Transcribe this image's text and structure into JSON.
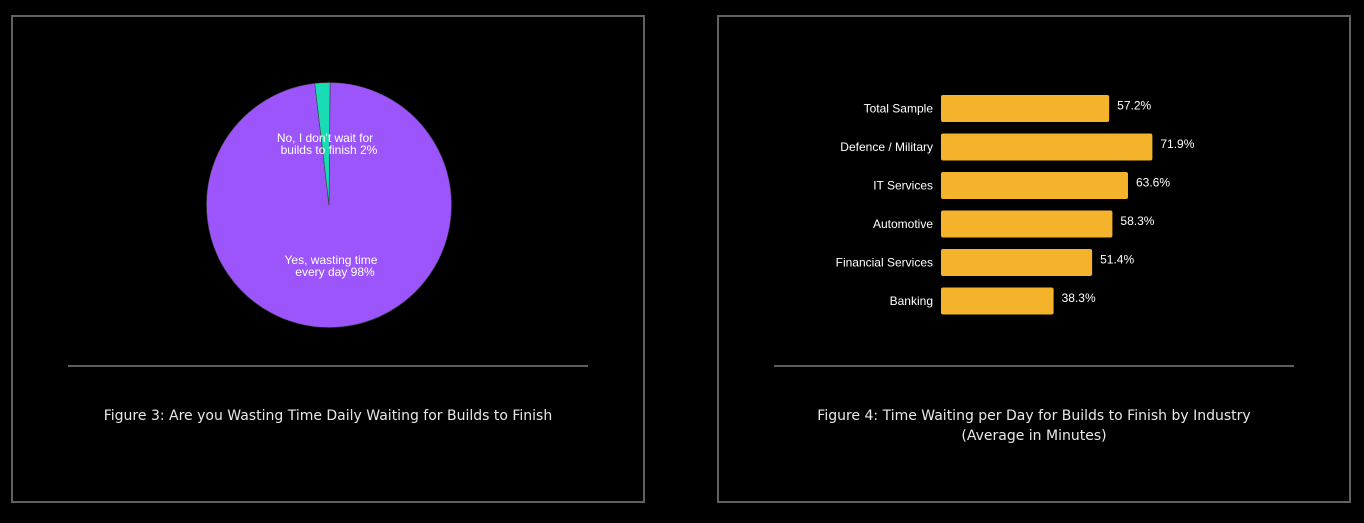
{
  "chart_data": [
    {
      "type": "pie",
      "slices": [
        {
          "label_lines": [
            "Yes, wasting time",
            "every day 98%"
          ],
          "value": 98,
          "color": "#9b55fb"
        },
        {
          "label_lines": [
            "No, I don't wait for",
            "builds to finish 2%"
          ],
          "value": 2,
          "color": "#19dbb4"
        }
      ],
      "caption": "Figure 3: Are you Wasting Time Daily Waiting for Builds to Finish"
    },
    {
      "type": "bar",
      "orientation": "horizontal",
      "categories": [
        "Total Sample",
        "Defence / Military",
        "IT Services",
        "Automotive",
        "Financial Services",
        "Banking"
      ],
      "values": [
        57.2,
        71.9,
        63.6,
        58.3,
        51.4,
        38.3
      ],
      "value_labels": [
        "57.2%",
        "71.9%",
        "63.6%",
        "58.3%",
        "51.4%",
        "38.3%"
      ],
      "bar_color": "#f4b32a",
      "caption_lines": [
        "Figure 4: Time Waiting per Day for Builds to Finish by Industry",
        "(Average in Minutes)"
      ]
    }
  ]
}
